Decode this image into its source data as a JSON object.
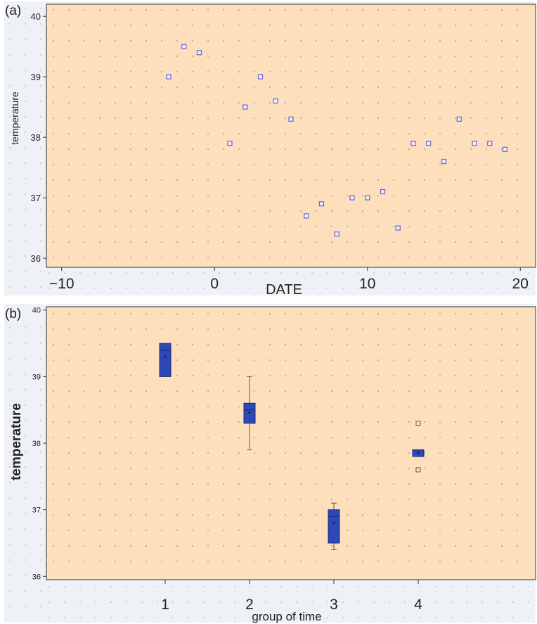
{
  "colors": {
    "plot_bg": "#fde0bb",
    "outer_bg": "#eef1f5",
    "grid_dot": "#8e8e8e",
    "marker": "#6d6dd6",
    "box_fill": "#2f48b8",
    "box_edge": "#18287a",
    "whisker": "#6b5a3a",
    "outlier": "#7a6a50"
  },
  "chart_data": [
    {
      "panel_label": "(a)",
      "type": "scatter",
      "xlabel": "DATE",
      "ylabel": "temperature",
      "xlim": [
        -11,
        21
      ],
      "ylim": [
        35.85,
        40.2
      ],
      "x_ticks": [
        -10,
        0,
        10,
        20
      ],
      "x_tick_labels": [
        "−10",
        "0",
        "10",
        "20"
      ],
      "y_ticks": [
        36,
        37,
        38,
        39,
        40
      ],
      "grid": true,
      "marker": "open-square",
      "points": [
        {
          "x": -3,
          "y": 39.0
        },
        {
          "x": -2,
          "y": 39.5
        },
        {
          "x": -1,
          "y": 39.4
        },
        {
          "x": 1,
          "y": 37.9
        },
        {
          "x": 2,
          "y": 38.5
        },
        {
          "x": 3,
          "y": 39.0
        },
        {
          "x": 4,
          "y": 38.6
        },
        {
          "x": 5,
          "y": 38.3
        },
        {
          "x": 6,
          "y": 36.7
        },
        {
          "x": 7,
          "y": 36.9
        },
        {
          "x": 8,
          "y": 36.4
        },
        {
          "x": 9,
          "y": 37.0
        },
        {
          "x": 10,
          "y": 37.0
        },
        {
          "x": 11,
          "y": 37.1
        },
        {
          "x": 12,
          "y": 36.5
        },
        {
          "x": 13,
          "y": 37.9
        },
        {
          "x": 14,
          "y": 37.9
        },
        {
          "x": 15,
          "y": 37.6
        },
        {
          "x": 16,
          "y": 38.3
        },
        {
          "x": 17,
          "y": 37.9
        },
        {
          "x": 18,
          "y": 37.9
        },
        {
          "x": 19,
          "y": 37.8
        }
      ]
    },
    {
      "panel_label": "(b)",
      "type": "box",
      "xlabel": "group of time",
      "ylabel": "temperature",
      "ylim": [
        35.95,
        40.05
      ],
      "y_ticks": [
        36,
        37,
        38,
        39,
        40
      ],
      "categories": [
        "1",
        "2",
        "3",
        "4"
      ],
      "grid": true,
      "boxes": [
        {
          "group": "1",
          "min": 39.0,
          "q1": 39.0,
          "median": 39.4,
          "q3": 39.5,
          "max": 39.5,
          "mean": 39.3,
          "outliers": []
        },
        {
          "group": "2",
          "min": 37.9,
          "q1": 38.3,
          "median": 38.5,
          "q3": 38.6,
          "max": 39.0,
          "mean": 38.46,
          "outliers": []
        },
        {
          "group": "3",
          "min": 36.4,
          "q1": 36.5,
          "median": 36.9,
          "q3": 37.0,
          "max": 37.1,
          "mean": 36.8,
          "outliers": []
        },
        {
          "group": "4",
          "min": 37.8,
          "q1": 37.8,
          "median": 37.9,
          "q3": 37.9,
          "max": 37.9,
          "mean": 37.86,
          "outliers": [
            38.3,
            37.6
          ]
        }
      ]
    }
  ]
}
